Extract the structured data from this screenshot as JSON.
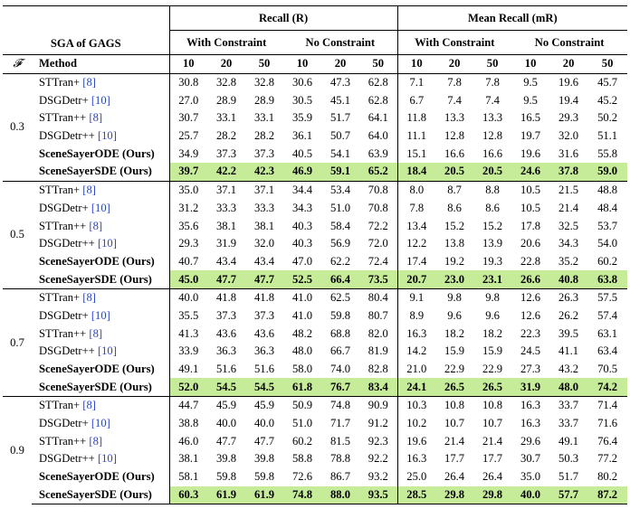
{
  "header": {
    "sga_label": "SGA of GAGS",
    "recall_group": "Recall (R)",
    "mean_recall_group": "Mean Recall (mR)",
    "with_constraint": "With Constraint",
    "no_constraint": "No Constraint",
    "f_symbol": "𝓕",
    "method_label": "Method",
    "k_values": [
      "10",
      "20",
      "50",
      "10",
      "20",
      "50",
      "10",
      "20",
      "50",
      "10",
      "20",
      "50"
    ]
  },
  "groups": [
    {
      "f": "0.3",
      "rows": [
        {
          "method": "STTran+",
          "ref": "[8]",
          "bold": false,
          "highlight": false,
          "values": [
            "30.8",
            "32.8",
            "32.8",
            "30.6",
            "47.3",
            "62.8",
            "7.1",
            "7.8",
            "7.8",
            "9.5",
            "19.6",
            "45.7"
          ]
        },
        {
          "method": "DSGDetr+",
          "ref": "[10]",
          "bold": false,
          "highlight": false,
          "values": [
            "27.0",
            "28.9",
            "28.9",
            "30.5",
            "45.1",
            "62.8",
            "6.7",
            "7.4",
            "7.4",
            "9.5",
            "19.4",
            "45.2"
          ]
        },
        {
          "method": "STTran++",
          "ref": "[8]",
          "bold": false,
          "highlight": false,
          "values": [
            "30.7",
            "33.1",
            "33.1",
            "35.9",
            "51.7",
            "64.1",
            "11.8",
            "13.3",
            "13.3",
            "16.5",
            "29.3",
            "50.2"
          ]
        },
        {
          "method": "DSGDetr++",
          "ref": "[10]",
          "bold": false,
          "highlight": false,
          "values": [
            "25.7",
            "28.2",
            "28.2",
            "36.1",
            "50.7",
            "64.0",
            "11.1",
            "12.8",
            "12.8",
            "19.7",
            "32.0",
            "51.1"
          ]
        },
        {
          "method": "SceneSayerODE (Ours)",
          "ref": "",
          "bold": true,
          "highlight": false,
          "values": [
            "34.9",
            "37.3",
            "37.3",
            "40.5",
            "54.1",
            "63.9",
            "15.1",
            "16.6",
            "16.6",
            "19.6",
            "31.6",
            "55.8"
          ]
        },
        {
          "method": "SceneSayerSDE (Ours)",
          "ref": "",
          "bold": true,
          "highlight": true,
          "values": [
            "39.7",
            "42.2",
            "42.3",
            "46.9",
            "59.1",
            "65.2",
            "18.4",
            "20.5",
            "20.5",
            "24.6",
            "37.8",
            "59.0"
          ]
        }
      ]
    },
    {
      "f": "0.5",
      "rows": [
        {
          "method": "STTran+",
          "ref": "[8]",
          "bold": false,
          "highlight": false,
          "values": [
            "35.0",
            "37.1",
            "37.1",
            "34.4",
            "53.4",
            "70.8",
            "8.0",
            "8.7",
            "8.8",
            "10.5",
            "21.5",
            "48.8"
          ]
        },
        {
          "method": "DSGDetr+",
          "ref": "[10]",
          "bold": false,
          "highlight": false,
          "values": [
            "31.2",
            "33.3",
            "33.3",
            "34.3",
            "51.0",
            "70.8",
            "7.8",
            "8.6",
            "8.6",
            "10.5",
            "21.4",
            "48.4"
          ]
        },
        {
          "method": "STTran++",
          "ref": "[8]",
          "bold": false,
          "highlight": false,
          "values": [
            "35.6",
            "38.1",
            "38.1",
            "40.3",
            "58.4",
            "72.2",
            "13.4",
            "15.2",
            "15.2",
            "17.8",
            "32.5",
            "53.7"
          ]
        },
        {
          "method": "DSGDetr++",
          "ref": "[10]",
          "bold": false,
          "highlight": false,
          "values": [
            "29.3",
            "31.9",
            "32.0",
            "40.3",
            "56.9",
            "72.0",
            "12.2",
            "13.8",
            "13.9",
            "20.6",
            "34.3",
            "54.0"
          ]
        },
        {
          "method": "SceneSayerODE (Ours)",
          "ref": "",
          "bold": true,
          "highlight": false,
          "values": [
            "40.7",
            "43.4",
            "43.4",
            "47.0",
            "62.2",
            "72.4",
            "17.4",
            "19.2",
            "19.3",
            "22.8",
            "35.2",
            "60.2"
          ]
        },
        {
          "method": "SceneSayerSDE (Ours)",
          "ref": "",
          "bold": true,
          "highlight": true,
          "values": [
            "45.0",
            "47.7",
            "47.7",
            "52.5",
            "66.4",
            "73.5",
            "20.7",
            "23.0",
            "23.1",
            "26.6",
            "40.8",
            "63.8"
          ]
        }
      ]
    },
    {
      "f": "0.7",
      "rows": [
        {
          "method": "STTran+",
          "ref": "[8]",
          "bold": false,
          "highlight": false,
          "values": [
            "40.0",
            "41.8",
            "41.8",
            "41.0",
            "62.5",
            "80.4",
            "9.1",
            "9.8",
            "9.8",
            "12.6",
            "26.3",
            "57.5"
          ]
        },
        {
          "method": "DSGDetr+",
          "ref": "[10]",
          "bold": false,
          "highlight": false,
          "values": [
            "35.5",
            "37.3",
            "37.3",
            "41.0",
            "59.8",
            "80.7",
            "8.9",
            "9.6",
            "9.6",
            "12.6",
            "26.2",
            "57.4"
          ]
        },
        {
          "method": "STTran++",
          "ref": "[8]",
          "bold": false,
          "highlight": false,
          "values": [
            "41.3",
            "43.6",
            "43.6",
            "48.2",
            "68.8",
            "82.0",
            "16.3",
            "18.2",
            "18.2",
            "22.3",
            "39.5",
            "63.1"
          ]
        },
        {
          "method": "DSGDetr++",
          "ref": "[10]",
          "bold": false,
          "highlight": false,
          "values": [
            "33.9",
            "36.3",
            "36.3",
            "48.0",
            "66.7",
            "81.9",
            "14.2",
            "15.9",
            "15.9",
            "24.5",
            "41.1",
            "63.4"
          ]
        },
        {
          "method": "SceneSayerODE (Ours)",
          "ref": "",
          "bold": true,
          "highlight": false,
          "values": [
            "49.1",
            "51.6",
            "51.6",
            "58.0",
            "74.0",
            "82.8",
            "21.0",
            "22.9",
            "22.9",
            "27.3",
            "43.2",
            "70.5"
          ]
        },
        {
          "method": "SceneSayerSDE (Ours)",
          "ref": "",
          "bold": true,
          "highlight": true,
          "values": [
            "52.0",
            "54.5",
            "54.5",
            "61.8",
            "76.7",
            "83.4",
            "24.1",
            "26.5",
            "26.5",
            "31.9",
            "48.0",
            "74.2"
          ]
        }
      ]
    },
    {
      "f": "0.9",
      "rows": [
        {
          "method": "STTran+",
          "ref": "[8]",
          "bold": false,
          "highlight": false,
          "values": [
            "44.7",
            "45.9",
            "45.9",
            "50.9",
            "74.8",
            "90.9",
            "10.3",
            "10.8",
            "10.8",
            "16.3",
            "33.7",
            "71.4"
          ]
        },
        {
          "method": "DSGDetr+",
          "ref": "[10]",
          "bold": false,
          "highlight": false,
          "values": [
            "38.8",
            "40.0",
            "40.0",
            "51.0",
            "71.7",
            "91.2",
            "10.2",
            "10.7",
            "10.7",
            "16.3",
            "33.7",
            "71.6"
          ]
        },
        {
          "method": "STTran++",
          "ref": "[8]",
          "bold": false,
          "highlight": false,
          "values": [
            "46.0",
            "47.7",
            "47.7",
            "60.2",
            "81.5",
            "92.3",
            "19.6",
            "21.4",
            "21.4",
            "29.6",
            "49.1",
            "76.4"
          ]
        },
        {
          "method": "DSGDetr++",
          "ref": "[10]",
          "bold": false,
          "highlight": false,
          "values": [
            "38.1",
            "39.8",
            "39.8",
            "58.8",
            "78.8",
            "92.2",
            "16.3",
            "17.7",
            "17.7",
            "30.7",
            "50.3",
            "77.2"
          ]
        },
        {
          "method": "SceneSayerODE (Ours)",
          "ref": "",
          "bold": true,
          "highlight": false,
          "values": [
            "58.1",
            "59.8",
            "59.8",
            "72.6",
            "86.7",
            "93.2",
            "25.0",
            "26.4",
            "26.4",
            "35.0",
            "51.7",
            "80.2"
          ]
        },
        {
          "method": "SceneSayerSDE (Ours)",
          "ref": "",
          "bold": true,
          "highlight": true,
          "values": [
            "60.3",
            "61.9",
            "61.9",
            "74.8",
            "88.0",
            "93.5",
            "28.5",
            "29.8",
            "29.8",
            "40.0",
            "57.7",
            "87.2"
          ]
        }
      ]
    }
  ],
  "colors": {
    "highlight": "#c6ec99",
    "citation": "#2a46c8"
  }
}
